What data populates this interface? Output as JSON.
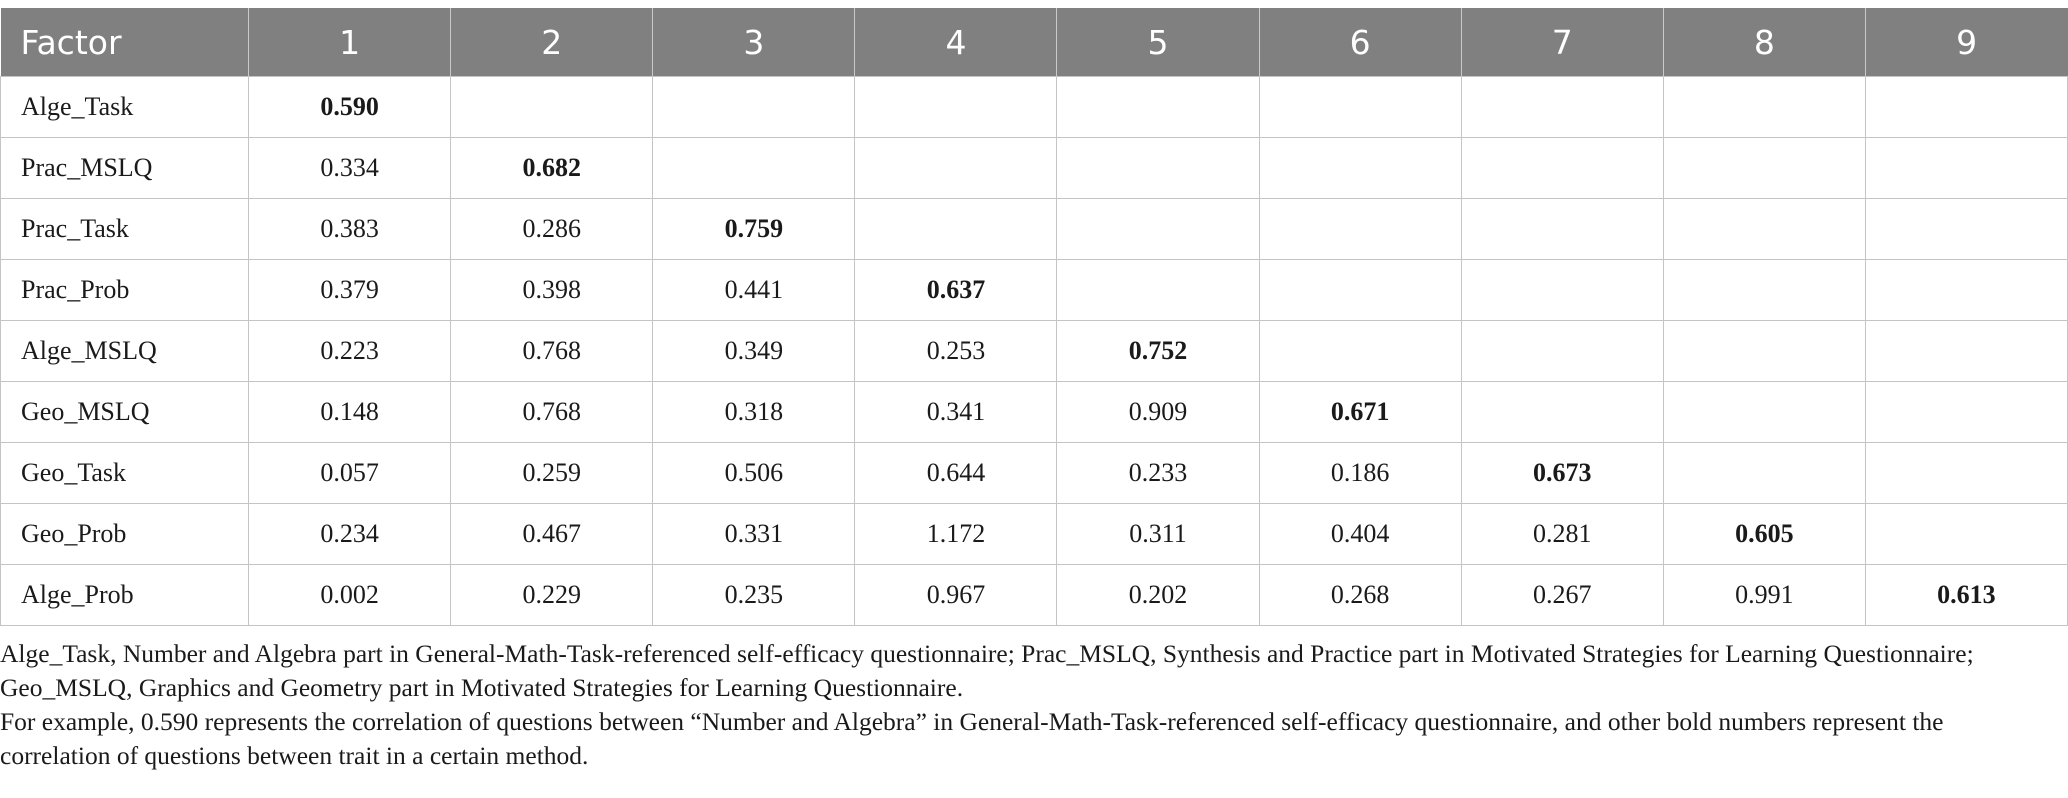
{
  "table": {
    "header": [
      "Factor",
      "1",
      "2",
      "3",
      "4",
      "5",
      "6",
      "7",
      "8",
      "9"
    ],
    "rows": [
      {
        "factor": "Alge_Task",
        "values": [
          "0.590",
          "",
          "",
          "",
          "",
          "",
          "",
          "",
          ""
        ]
      },
      {
        "factor": "Prac_MSLQ",
        "values": [
          "0.334",
          "0.682",
          "",
          "",
          "",
          "",
          "",
          "",
          ""
        ]
      },
      {
        "factor": "Prac_Task",
        "values": [
          "0.383",
          "0.286",
          "0.759",
          "",
          "",
          "",
          "",
          "",
          ""
        ]
      },
      {
        "factor": "Prac_Prob",
        "values": [
          "0.379",
          "0.398",
          "0.441",
          "0.637",
          "",
          "",
          "",
          "",
          ""
        ]
      },
      {
        "factor": "Alge_MSLQ",
        "values": [
          "0.223",
          "0.768",
          "0.349",
          "0.253",
          "0.752",
          "",
          "",
          "",
          ""
        ]
      },
      {
        "factor": "Geo_MSLQ",
        "values": [
          "0.148",
          "0.768",
          "0.318",
          "0.341",
          "0.909",
          "0.671",
          "",
          "",
          ""
        ]
      },
      {
        "factor": "Geo_Task",
        "values": [
          "0.057",
          "0.259",
          "0.506",
          "0.644",
          "0.233",
          "0.186",
          "0.673",
          "",
          ""
        ]
      },
      {
        "factor": "Geo_Prob",
        "values": [
          "0.234",
          "0.467",
          "0.331",
          "1.172",
          "0.311",
          "0.404",
          "0.281",
          "0.605",
          ""
        ]
      },
      {
        "factor": "Alge_Prob",
        "values": [
          "0.002",
          "0.229",
          "0.235",
          "0.967",
          "0.202",
          "0.268",
          "0.267",
          "0.991",
          "0.613"
        ]
      }
    ]
  },
  "notes": {
    "abbreviations": "Alge_Task, Number and Algebra part in General-Math-Task-referenced self-efficacy questionnaire; Prac_MSLQ, Synthesis and Practice part in Motivated Strategies for Learning Questionnaire; Geo_MSLQ, Graphics and Geometry part in Motivated Strategies for Learning Questionnaire.",
    "example": "For example, 0.590 represents the correlation of questions between “Number and Algebra” in General-Math-Task-referenced self-efficacy questionnaire, and other bold numbers represent the correlation of questions between trait in a certain method."
  }
}
